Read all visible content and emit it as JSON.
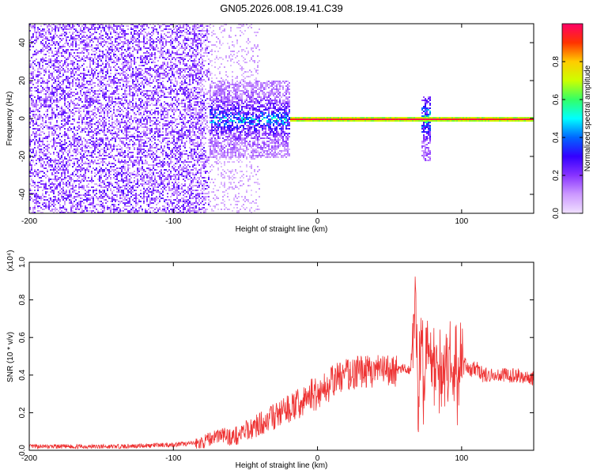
{
  "title": "GN05.2026.008.19.41.C39",
  "chart_data": [
    {
      "type": "heatmap",
      "xlabel": "Height of straight line (km)",
      "ylabel": "Frequency (Hz)",
      "xlim": [
        -200,
        150
      ],
      "ylim": [
        -50,
        50
      ],
      "x_ticks": [
        -200,
        -100,
        0,
        100
      ],
      "x_tick_labels": [
        "-200",
        "-100",
        "0",
        "100"
      ],
      "y_ticks": [
        -40,
        -20,
        0,
        20,
        40
      ],
      "y_tick_labels": [
        "-40",
        "-20",
        "0",
        "20",
        "40"
      ],
      "grid": false,
      "colorbar": {
        "label": "Normalized spectral amplitude",
        "range": [
          0,
          1
        ],
        "ticks": [
          0.0,
          0.2,
          0.4,
          0.6,
          0.8
        ],
        "tick_labels": [
          "0.0",
          "0.2",
          "0.4",
          "0.6",
          "0.8"
        ],
        "colormap": [
          "#f0e0ff",
          "#cc99ff",
          "#8833ff",
          "#3300ff",
          "#0066ff",
          "#00ffff",
          "#33ff66",
          "#ccff00",
          "#ffcc00",
          "#ff3300",
          "#ff0066"
        ]
      },
      "features": [
        {
          "x_range": [
            -200,
            -75
          ],
          "freq_range": [
            -50,
            50
          ],
          "amplitude": 0.15,
          "description_level": "low-amplitude broadband noise"
        },
        {
          "x_range": [
            -75,
            -20
          ],
          "freq_range": [
            -20,
            20
          ],
          "amplitude": 0.4
        },
        {
          "x_range": [
            -20,
            150
          ],
          "freq_range": [
            -1.5,
            1.5
          ],
          "amplitude": 0.95
        },
        {
          "x_range": [
            72,
            78
          ],
          "freq_range": [
            -22,
            12
          ],
          "amplitude": 0.5
        }
      ]
    },
    {
      "type": "line",
      "xlabel": "Height of straight line (km)",
      "ylabel": "SNR (10 * v/v)",
      "y_multiplier_label": "(x10⁴)",
      "xlim": [
        -200,
        150
      ],
      "ylim": [
        0,
        1.0
      ],
      "x_ticks": [
        -200,
        -100,
        0,
        100
      ],
      "x_tick_labels": [
        "-200",
        "-100",
        "0",
        "100"
      ],
      "y_ticks": [
        0.0,
        0.2,
        0.4,
        0.6,
        0.8,
        1.0
      ],
      "y_tick_labels": [
        "0.0",
        "0.2",
        "0.4",
        "0.6",
        "0.8",
        "1.0"
      ],
      "grid": false,
      "color": "#ee3333",
      "x": [
        -200,
        -180,
        -160,
        -140,
        -120,
        -100,
        -90,
        -80,
        -75,
        -70,
        -65,
        -60,
        -55,
        -50,
        -45,
        -40,
        -35,
        -30,
        -25,
        -20,
        -15,
        -10,
        -5,
        0,
        5,
        10,
        15,
        20,
        25,
        30,
        35,
        40,
        45,
        50,
        55,
        60,
        65,
        68,
        70,
        72,
        74,
        76,
        78,
        80,
        85,
        90,
        95,
        98,
        100,
        105,
        110,
        115,
        120,
        130,
        140,
        150
      ],
      "y": [
        0.02,
        0.02,
        0.02,
        0.02,
        0.025,
        0.03,
        0.035,
        0.04,
        0.06,
        0.08,
        0.08,
        0.07,
        0.08,
        0.1,
        0.12,
        0.14,
        0.16,
        0.18,
        0.2,
        0.22,
        0.24,
        0.25,
        0.3,
        0.3,
        0.33,
        0.36,
        0.39,
        0.4,
        0.41,
        0.42,
        0.42,
        0.42,
        0.42,
        0.42,
        0.43,
        0.43,
        0.43,
        0.9,
        0.2,
        0.7,
        0.3,
        0.6,
        0.45,
        0.4,
        0.4,
        0.42,
        0.45,
        0.3,
        0.5,
        0.42,
        0.44,
        0.4,
        0.4,
        0.4,
        0.4,
        0.38
      ]
    }
  ]
}
